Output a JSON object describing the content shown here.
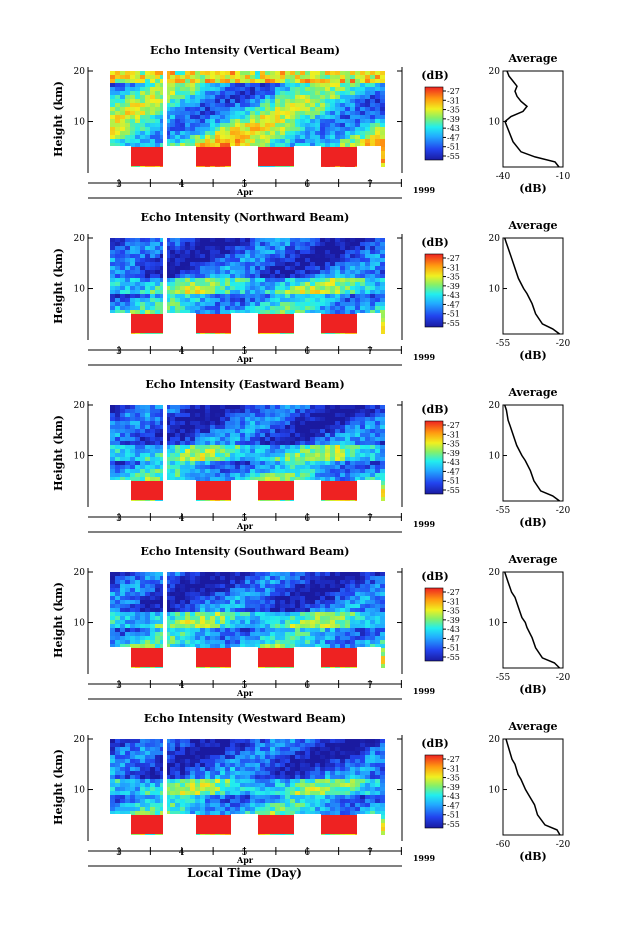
{
  "footer": {
    "xlabel": "Local Time (Day)"
  },
  "chart_data": [
    {
      "type": "heatmap",
      "title": "Echo Intensity (Vertical Beam)",
      "ylabel": "Height (km)",
      "xlabel": "Apr",
      "year": "1999",
      "ylim": [
        1,
        20
      ],
      "yticks": [
        "20",
        "10"
      ],
      "xticks": [
        "3",
        "4",
        "5",
        "6",
        "7"
      ],
      "colorbar": {
        "label": "(dB)",
        "ticks": [
          "-27",
          "-31",
          "-35",
          "-39",
          "-43",
          "-47",
          "-51",
          "-55"
        ]
      },
      "average": {
        "title": "Average",
        "xlabel": "(dB)",
        "xticks": [
          "-40",
          "-10"
        ],
        "yticks": [
          "20",
          "10"
        ],
        "xlim": [
          -40,
          -10
        ],
        "profile": [
          [
            -12,
            1
          ],
          [
            -14,
            2
          ],
          [
            -24,
            3
          ],
          [
            -31,
            4
          ],
          [
            -35,
            6
          ],
          [
            -36,
            7
          ],
          [
            -37,
            8
          ],
          [
            -38,
            9
          ],
          [
            -39,
            10
          ],
          [
            -36,
            11
          ],
          [
            -30,
            12
          ],
          [
            -28,
            13
          ],
          [
            -31,
            14
          ],
          [
            -33,
            15
          ],
          [
            -34,
            16
          ],
          [
            -33,
            17
          ],
          [
            -35,
            18
          ],
          [
            -37,
            19
          ],
          [
            -38,
            20
          ]
        ]
      }
    },
    {
      "type": "heatmap",
      "title": "Echo Intensity (Northward Beam)",
      "ylabel": "Height (km)",
      "xlabel": "Apr",
      "year": "1999",
      "ylim": [
        1,
        20
      ],
      "yticks": [
        "20",
        "10"
      ],
      "xticks": [
        "3",
        "4",
        "5",
        "6",
        "7"
      ],
      "colorbar": {
        "label": "(dB)",
        "ticks": [
          "-27",
          "-31",
          "-35",
          "-39",
          "-43",
          "-47",
          "-51",
          "-55"
        ]
      },
      "average": {
        "title": "Average",
        "xlabel": "(dB)",
        "xticks": [
          "-55",
          "-20"
        ],
        "yticks": [
          "20",
          "10"
        ],
        "xlim": [
          -55,
          -20
        ],
        "profile": [
          [
            -22,
            1
          ],
          [
            -26,
            2
          ],
          [
            -32,
            3
          ],
          [
            -36,
            5
          ],
          [
            -38,
            7
          ],
          [
            -41,
            9
          ],
          [
            -43,
            10
          ],
          [
            -46,
            12
          ],
          [
            -47,
            13
          ],
          [
            -49,
            15
          ],
          [
            -50,
            16
          ],
          [
            -51,
            17
          ],
          [
            -53,
            19
          ],
          [
            -54,
            20
          ]
        ]
      }
    },
    {
      "type": "heatmap",
      "title": "Echo Intensity (Eastward Beam)",
      "ylabel": "Height (km)",
      "xlabel": "Apr",
      "year": "1999",
      "ylim": [
        1,
        20
      ],
      "yticks": [
        "20",
        "10"
      ],
      "xticks": [
        "3",
        "4",
        "5",
        "6",
        "7"
      ],
      "colorbar": {
        "label": "(dB)",
        "ticks": [
          "-27",
          "-31",
          "-35",
          "-39",
          "-43",
          "-47",
          "-51",
          "-55"
        ]
      },
      "average": {
        "title": "Average",
        "xlabel": "(dB)",
        "xticks": [
          "-55",
          "-20"
        ],
        "yticks": [
          "20",
          "10"
        ],
        "xlim": [
          -55,
          -20
        ],
        "profile": [
          [
            -22,
            1
          ],
          [
            -26,
            2
          ],
          [
            -33,
            3
          ],
          [
            -37,
            5
          ],
          [
            -39,
            7
          ],
          [
            -42,
            9
          ],
          [
            -44,
            10
          ],
          [
            -47,
            12
          ],
          [
            -48,
            13
          ],
          [
            -50,
            15
          ],
          [
            -51,
            16
          ],
          [
            -52,
            17
          ],
          [
            -53,
            19
          ],
          [
            -54,
            20
          ]
        ]
      }
    },
    {
      "type": "heatmap",
      "title": "Echo Intensity (Southward Beam)",
      "ylabel": "Height (km)",
      "xlabel": "Apr",
      "year": "1999",
      "ylim": [
        1,
        20
      ],
      "yticks": [
        "20",
        "10"
      ],
      "xticks": [
        "3",
        "4",
        "5",
        "6",
        "7"
      ],
      "colorbar": {
        "label": "(dB)",
        "ticks": [
          "-27",
          "-31",
          "-35",
          "-39",
          "-43",
          "-47",
          "-51",
          "-55"
        ]
      },
      "average": {
        "title": "Average",
        "xlabel": "(dB)",
        "xticks": [
          "-55",
          "-20"
        ],
        "yticks": [
          "20",
          "10"
        ],
        "xlim": [
          -55,
          -20
        ],
        "profile": [
          [
            -22,
            1
          ],
          [
            -25,
            2
          ],
          [
            -32,
            3
          ],
          [
            -36,
            5
          ],
          [
            -38,
            7
          ],
          [
            -41,
            9
          ],
          [
            -42,
            10
          ],
          [
            -44,
            11
          ],
          [
            -46,
            13
          ],
          [
            -48,
            15
          ],
          [
            -50,
            16
          ],
          [
            -52,
            18
          ],
          [
            -54,
            20
          ]
        ]
      }
    },
    {
      "type": "heatmap",
      "title": "Echo Intensity (Westward Beam)",
      "ylabel": "Height (km)",
      "xlabel": "Apr",
      "year": "1999",
      "ylim": [
        1,
        20
      ],
      "yticks": [
        "20",
        "10"
      ],
      "xticks": [
        "3",
        "4",
        "5",
        "6",
        "7"
      ],
      "colorbar": {
        "label": "(dB)",
        "ticks": [
          "-27",
          "-31",
          "-35",
          "-39",
          "-43",
          "-47",
          "-51",
          "-55"
        ]
      },
      "average": {
        "title": "Average",
        "xlabel": "(dB)",
        "xticks": [
          "-60",
          "-20"
        ],
        "yticks": [
          "20",
          "10"
        ],
        "xlim": [
          -60,
          -20
        ],
        "profile": [
          [
            -22,
            1
          ],
          [
            -24,
            2
          ],
          [
            -32,
            3
          ],
          [
            -37,
            5
          ],
          [
            -39,
            7
          ],
          [
            -43,
            9
          ],
          [
            -45,
            10
          ],
          [
            -48,
            12
          ],
          [
            -50,
            13
          ],
          [
            -52,
            15
          ],
          [
            -54,
            16
          ],
          [
            -56,
            18
          ],
          [
            -58,
            20
          ]
        ]
      }
    }
  ]
}
